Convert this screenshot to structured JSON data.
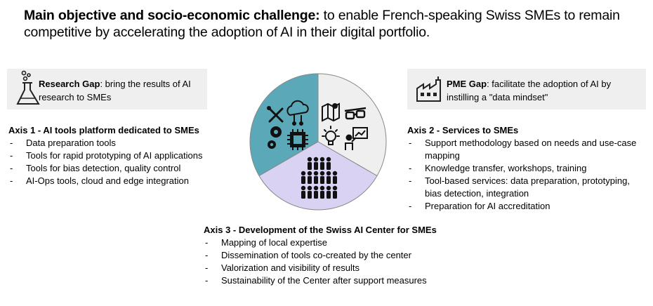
{
  "headline": {
    "bold": "Main objective and socio-economic challenge:",
    "rest": " to enable French-speaking Swiss SMEs to remain competitive by accelerating the adoption of AI in their digital portfolio."
  },
  "research_gap": {
    "label": "Research Gap",
    "text": ": bring the results of AI research to SMEs"
  },
  "pme_gap": {
    "label": "PME Gap",
    "text": ": facilitate the adoption of AI by instilling a \"data mindset\""
  },
  "axis1": {
    "title": "Axis 1 - AI tools platform dedicated to SMEs",
    "items": [
      "Data preparation tools",
      "Tools for rapid prototyping of AI applications",
      "Tools for bias detection, quality control",
      "AI-Ops tools, cloud and edge integration"
    ]
  },
  "axis2": {
    "title": "Axis 2 - Services to SMEs",
    "items": [
      "Support methodology based on needs and use-case mapping",
      "Knowledge transfer, workshops, training",
      "Tool-based services: data preparation, prototyping, bias detection, integration",
      "Preparation for AI accreditation"
    ]
  },
  "axis3": {
    "title": "Axis 3 - Development of the Swiss AI Center for SMEs",
    "items": [
      "Mapping of local expertise",
      "Dissemination of tools co-created by the center",
      "Valorization and visibility of results",
      "Sustainability of the Center after support measures"
    ]
  },
  "pie": {
    "segments": [
      {
        "axis": "Axis 1",
        "color": "#5ba8b8",
        "icons": [
          "tools-icon",
          "cloud-network-icon",
          "gears-icon",
          "chip-icon"
        ]
      },
      {
        "axis": "Axis 2",
        "color": "#efefef",
        "icons": [
          "map-icon",
          "glasses-icon",
          "lightbulb-icon",
          "presenter-icon"
        ]
      },
      {
        "axis": "Axis 3",
        "color": "#d9d2f2",
        "icons": [
          "people-group-icon"
        ]
      }
    ]
  }
}
